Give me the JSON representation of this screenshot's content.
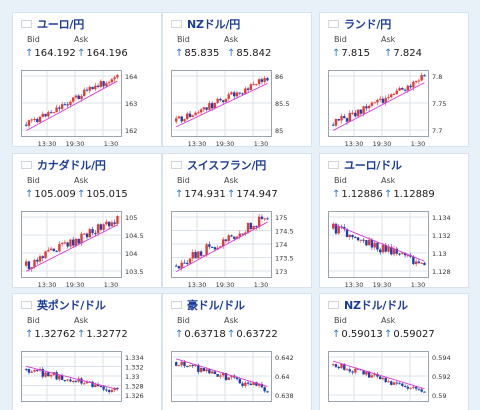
{
  "cards": [
    {
      "id": "eur-jpy",
      "pair": "ユーロ/円",
      "flag": "eu-jp",
      "bid_label": "Bid",
      "ask_label": "Ask",
      "bid": "164.192",
      "ask": "164.196",
      "yticks": [
        "164",
        "163",
        "162"
      ],
      "xticks": [
        "13:30",
        "19:30",
        "1:30"
      ]
    },
    {
      "id": "nzd-jpy",
      "pair": "NZドル/円",
      "flag": "nz-jp",
      "bid_label": "Bid",
      "ask_label": "Ask",
      "bid": "85.835",
      "ask": "85.842",
      "yticks": [
        "86",
        "85.5",
        "85"
      ],
      "xticks": [
        "13:30",
        "19:30",
        "1:30"
      ]
    },
    {
      "id": "zar-jpy",
      "pair": "ランド/円",
      "flag": "za-jp",
      "bid_label": "Bid",
      "ask_label": "Ask",
      "bid": "7.815",
      "ask": "7.824",
      "yticks": [
        "7.8",
        "7.75",
        "7.7"
      ],
      "xticks": [
        "13:30",
        "19:30",
        "1:30"
      ]
    },
    {
      "id": "cad-jpy",
      "pair": "カナダドル/円",
      "flag": "ca-jp",
      "bid_label": "Bid",
      "ask_label": "Ask",
      "bid": "105.009",
      "ask": "105.015",
      "yticks": [
        "105",
        "104.5",
        "104",
        "103.5"
      ],
      "xticks": [
        "13:30",
        "19:30",
        "1:30"
      ]
    },
    {
      "id": "chf-jpy",
      "pair": "スイスフラン/円",
      "flag": "ch-jp",
      "bid_label": "Bid",
      "ask_label": "Ask",
      "bid": "174.931",
      "ask": "174.947",
      "yticks": [
        "175",
        "174.5",
        "174",
        "173.5",
        "173"
      ],
      "xticks": [
        "13:30",
        "19:30",
        "1:30"
      ]
    },
    {
      "id": "eur-usd",
      "pair": "ユーロ/ドル",
      "flag": "eu-us",
      "bid_label": "Bid",
      "ask_label": "Ask",
      "bid": "1.12886",
      "ask": "1.12889",
      "yticks": [
        "1.134",
        "1.132",
        "1.13",
        "1.128"
      ],
      "xticks": [
        "13:30",
        "19:30",
        "1:30"
      ]
    },
    {
      "id": "gbp-usd",
      "pair": "英ポンド/ドル",
      "flag": "gb-us",
      "bid_label": "Bid",
      "ask_label": "Ask",
      "bid": "1.32762",
      "ask": "1.32772",
      "yticks": [
        "1.334",
        "1.332",
        "1.33",
        "1.328",
        "1.326"
      ],
      "xticks": []
    },
    {
      "id": "aud-usd",
      "pair": "豪ドル/ドル",
      "flag": "au-us",
      "bid_label": "Bid",
      "ask_label": "Ask",
      "bid": "0.63718",
      "ask": "0.63722",
      "yticks": [
        "0.642",
        "0.64",
        "0.638"
      ],
      "xticks": []
    },
    {
      "id": "nzd-usd",
      "pair": "NZドル/ドル",
      "flag": "nz-us",
      "bid_label": "Bid",
      "ask_label": "Ask",
      "bid": "0.59013",
      "ask": "0.59027",
      "yticks": [
        "0.594",
        "0.592",
        "0.59"
      ],
      "xticks": []
    }
  ],
  "colors": {
    "up": "#e53935",
    "down": "#1e3fae",
    "ma": "#d63ad6",
    "grid": "#dde3ea",
    "pair": "#1a3c9a",
    "arrow": "#2a78c8"
  }
}
